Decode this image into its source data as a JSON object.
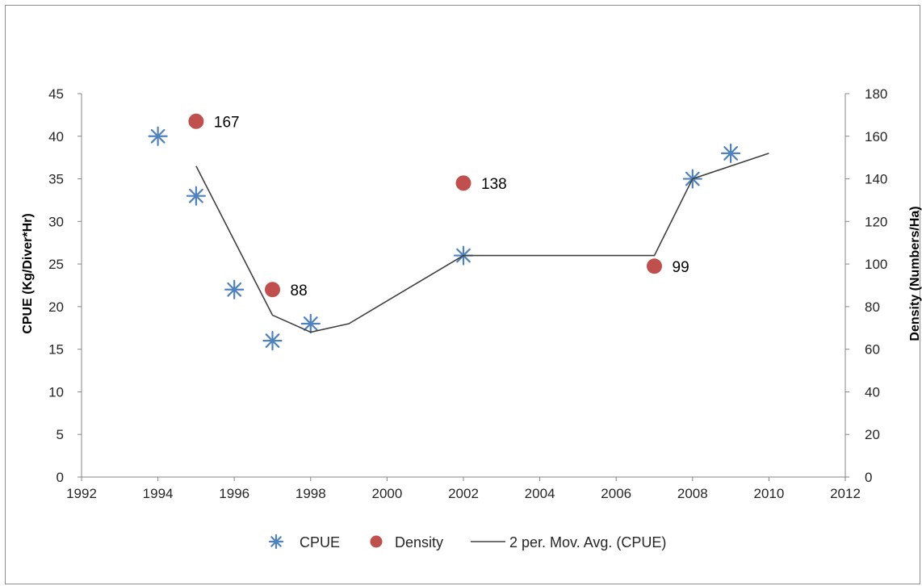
{
  "chart_data": {
    "type": "scatter",
    "title": "",
    "xlabel": "",
    "ylabel": "CPUE (Kg/Diver*Hr)",
    "y2label": "Density (Numbers/Ha)",
    "xlim": [
      1992,
      2012
    ],
    "ylim": [
      0,
      45
    ],
    "y2lim": [
      0,
      180
    ],
    "x_ticks": [
      "1992",
      "1994",
      "1996",
      "1998",
      "2000",
      "2002",
      "2004",
      "2006",
      "2008",
      "2010",
      "2012"
    ],
    "y_ticks": [
      "0",
      "5",
      "10",
      "15",
      "20",
      "25",
      "30",
      "35",
      "40",
      "45"
    ],
    "y2_ticks": [
      "0",
      "20",
      "40",
      "60",
      "80",
      "100",
      "120",
      "140",
      "160",
      "180"
    ],
    "grid": false,
    "legend_position": "bottom",
    "series": [
      {
        "name": "CPUE",
        "type": "scatter",
        "axis": "left",
        "marker": "asterisk",
        "color": "#4f81bd",
        "x": [
          1994,
          1995,
          1996,
          1997,
          1998,
          2002,
          2008,
          2009
        ],
        "y": [
          40,
          33,
          22,
          16,
          18,
          26,
          35,
          38
        ]
      },
      {
        "name": "Density",
        "type": "scatter",
        "axis": "right",
        "marker": "circle",
        "color": "#c0504d",
        "x": [
          1995,
          1997,
          2002,
          2007
        ],
        "y": [
          167,
          88,
          138,
          99
        ],
        "labels": [
          "167",
          "88",
          "138",
          "99"
        ]
      },
      {
        "name": "2 per. Mov. Avg. (CPUE)",
        "type": "line",
        "axis": "left",
        "color": "#404040",
        "x": [
          1995,
          1997,
          1998,
          1999,
          2002,
          2007,
          2008,
          2010
        ],
        "y": [
          36.5,
          19,
          17,
          18,
          26,
          26,
          35,
          38
        ]
      }
    ]
  }
}
